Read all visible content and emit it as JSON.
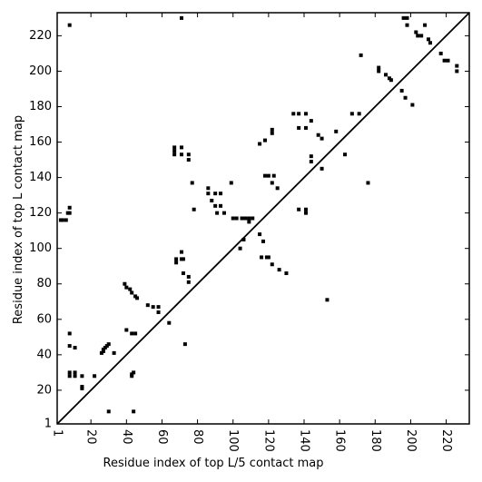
{
  "chart_data": {
    "type": "scatter",
    "xlabel": "Residue index of top L/5 contact map",
    "ylabel": "Residue index of top L contact map",
    "xlim": [
      1,
      233
    ],
    "ylim": [
      1,
      233
    ],
    "xticks": [
      1,
      20,
      40,
      60,
      80,
      100,
      120,
      140,
      160,
      180,
      200,
      220
    ],
    "yticks": [
      1,
      20,
      40,
      60,
      80,
      100,
      120,
      140,
      160,
      180,
      200,
      220
    ],
    "color": "#000000",
    "diagonal": true,
    "x": [
      8,
      71,
      3,
      4,
      6,
      7,
      8,
      8,
      8,
      8,
      11,
      8,
      8,
      11,
      11,
      15,
      15,
      15,
      22,
      26,
      27,
      28,
      29,
      30,
      27,
      33,
      30,
      43,
      44,
      43,
      44,
      43,
      45,
      40,
      39,
      40,
      42,
      43,
      45,
      46,
      52,
      55,
      58,
      58,
      64,
      67,
      67,
      67,
      71,
      71,
      75,
      75,
      77,
      78,
      68,
      68,
      71,
      71,
      72,
      72,
      75,
      75,
      73,
      86,
      86,
      88,
      90,
      90,
      93,
      93,
      91,
      95,
      99,
      100,
      102,
      105,
      107,
      106,
      104,
      109,
      109,
      111,
      115,
      118,
      115,
      117,
      118,
      120,
      122,
      123,
      125,
      122,
      122,
      120,
      122,
      126,
      130,
      116,
      119,
      134,
      137,
      141,
      137,
      141,
      144,
      137,
      141,
      141,
      144,
      144,
      148,
      150,
      150,
      153,
      158,
      163,
      167,
      171,
      172,
      176,
      182,
      182,
      186,
      188,
      189,
      195,
      197,
      201,
      196,
      198,
      198,
      203,
      204,
      206,
      208,
      210,
      211,
      217,
      219,
      221,
      226,
      226
    ],
    "y": [
      226,
      230,
      116,
      116,
      116,
      120,
      120,
      123,
      45,
      52,
      44,
      30,
      28,
      30,
      28,
      28,
      21,
      22,
      28,
      41,
      43,
      44,
      45,
      46,
      42,
      41,
      8,
      28,
      30,
      29,
      8,
      52,
      52,
      54,
      80,
      78,
      77,
      75,
      73,
      72,
      68,
      67,
      67,
      64,
      58,
      157,
      155,
      153,
      157,
      153,
      153,
      150,
      137,
      122,
      94,
      92,
      98,
      94,
      94,
      86,
      84,
      81,
      46,
      134,
      131,
      127,
      124,
      131,
      131,
      124,
      120,
      120,
      137,
      117,
      117,
      117,
      117,
      105,
      100,
      117,
      115,
      117,
      159,
      161,
      108,
      104,
      141,
      141,
      137,
      141,
      134,
      165,
      167,
      95,
      91,
      88,
      86,
      95,
      95,
      176,
      176,
      176,
      168,
      168,
      172,
      122,
      122,
      120,
      152,
      149,
      164,
      162,
      145,
      71,
      166,
      153,
      176,
      176,
      209,
      137,
      202,
      200,
      198,
      196,
      195,
      189,
      185,
      181,
      230,
      230,
      226,
      222,
      220,
      220,
      226,
      218,
      216,
      210,
      206,
      206,
      203,
      200
    ]
  }
}
